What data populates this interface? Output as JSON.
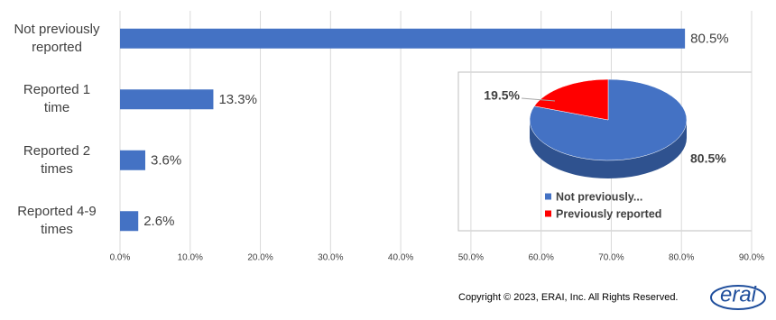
{
  "chart_data": [
    {
      "type": "bar",
      "orientation": "horizontal",
      "categories": [
        "Not previously\nreported",
        "Reported 1\ntime",
        "Reported 2\ntimes",
        "Reported 4-9\ntimes"
      ],
      "values": [
        80.5,
        13.3,
        3.6,
        2.6
      ],
      "value_labels": [
        "80.5%",
        "13.3%",
        "3.6%",
        "2.6%"
      ],
      "color": "#4472c4",
      "xlim": [
        0,
        90
      ],
      "xticks": [
        {
          "value": 0,
          "label": "0.0%"
        },
        {
          "value": 10,
          "label": "10.0%"
        },
        {
          "value": 20,
          "label": "20.0%"
        },
        {
          "value": 30,
          "label": "30.0%"
        },
        {
          "value": 40,
          "label": "40.0%"
        },
        {
          "value": 50,
          "label": "50.0%"
        },
        {
          "value": 60,
          "label": "60.0%"
        },
        {
          "value": 70,
          "label": "70.0%"
        },
        {
          "value": 80,
          "label": "80.0%"
        },
        {
          "value": 90,
          "label": "90.0%"
        }
      ],
      "grid": true
    },
    {
      "type": "pie",
      "categories": [
        "Not previously...",
        "Previously reported"
      ],
      "values": [
        80.5,
        19.5
      ],
      "value_labels": [
        "80.5%",
        "19.5%"
      ],
      "colors": [
        "#4472c4",
        "#ff0000"
      ],
      "legend": "bottom"
    }
  ],
  "footer": {
    "copyright": "Copyright © 2023, ERAI, Inc.  All Rights Reserved.",
    "logo": "erai"
  }
}
